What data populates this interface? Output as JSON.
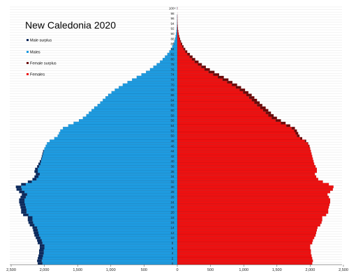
{
  "chart_data": {
    "type": "bar",
    "orientation": "horizontal",
    "title": "New Caledonia 2020",
    "legend": {
      "placement": "top-left",
      "entries": [
        {
          "key": "male_surplus",
          "label": "Male surplus",
          "color": "#0d2a5c"
        },
        {
          "key": "males",
          "label": "Males",
          "color": "#1e9be0"
        },
        {
          "key": "female_surplus",
          "label": "Female surplus",
          "color": "#6b0a0a"
        },
        {
          "key": "females",
          "label": "Females",
          "color": "#ee1010"
        }
      ]
    },
    "grid": true,
    "xlim": [
      -2500,
      2500
    ],
    "x_ticks": [
      -2500,
      -2000,
      -1500,
      -1000,
      -500,
      0,
      500,
      1000,
      1500,
      2000,
      2500
    ],
    "x_tick_labels": [
      "2,500",
      "2,000",
      "1,500",
      "1,000",
      "500",
      "0",
      "500",
      "1,000",
      "1,500",
      "2,000",
      "2,500"
    ],
    "age_labels": [
      "0",
      "2",
      "4",
      "6",
      "8",
      "10",
      "12",
      "14",
      "16",
      "18",
      "20",
      "22",
      "24",
      "26",
      "28",
      "30",
      "32",
      "34",
      "36",
      "38",
      "40",
      "42",
      "44",
      "46",
      "48",
      "50",
      "52",
      "54",
      "56",
      "58",
      "60",
      "62",
      "64",
      "66",
      "68",
      "70",
      "72",
      "74",
      "76",
      "78",
      "80",
      "82",
      "84",
      "86",
      "88",
      "90",
      "92",
      "94",
      "96",
      "98",
      "100+"
    ],
    "categories": [
      "0",
      "1",
      "2",
      "3",
      "4",
      "5",
      "6",
      "7",
      "8",
      "9",
      "10",
      "11",
      "12",
      "13",
      "14",
      "15",
      "16",
      "17",
      "18",
      "19",
      "20",
      "21",
      "22",
      "23",
      "24",
      "25",
      "26",
      "27",
      "28",
      "29",
      "30",
      "31",
      "32",
      "33",
      "34",
      "35",
      "36",
      "37",
      "38",
      "39",
      "40",
      "41",
      "42",
      "43",
      "44",
      "45",
      "46",
      "47",
      "48",
      "49",
      "50",
      "51",
      "52",
      "53",
      "54",
      "55",
      "56",
      "57",
      "58",
      "59",
      "60",
      "61",
      "62",
      "63",
      "64",
      "65",
      "66",
      "67",
      "68",
      "69",
      "70",
      "71",
      "72",
      "73",
      "74",
      "75",
      "76",
      "77",
      "78",
      "79",
      "80",
      "81",
      "82",
      "83",
      "84",
      "85",
      "86",
      "87",
      "88",
      "89",
      "90",
      "91",
      "92",
      "93",
      "94",
      "95",
      "96",
      "97",
      "98",
      "99",
      "100+"
    ],
    "series": [
      {
        "name": "Males",
        "values": [
          2100,
          2110,
          2100,
          2090,
          2080,
          2080,
          2070,
          2070,
          2100,
          2110,
          2130,
          2150,
          2160,
          2170,
          2180,
          2220,
          2240,
          2250,
          2250,
          2320,
          2350,
          2350,
          2360,
          2370,
          2380,
          2380,
          2360,
          2340,
          2380,
          2420,
          2430,
          2350,
          2250,
          2180,
          2150,
          2130,
          2150,
          2140,
          2110,
          2090,
          2070,
          2050,
          2040,
          2030,
          2020,
          2000,
          1980,
          1960,
          1920,
          1850,
          1800,
          1780,
          1760,
          1720,
          1640,
          1560,
          1480,
          1420,
          1370,
          1330,
          1290,
          1250,
          1200,
          1160,
          1120,
          1080,
          1040,
          990,
          940,
          880,
          820,
          750,
          680,
          610,
          540,
          470,
          410,
          360,
          310,
          260,
          220,
          185,
          150,
          120,
          95,
          75,
          58,
          44,
          33,
          24,
          17,
          12,
          8,
          5,
          3,
          2,
          1,
          1,
          0,
          0,
          1
        ]
      },
      {
        "name": "Females",
        "values": [
          2030,
          2040,
          2030,
          2020,
          2010,
          2010,
          2000,
          2000,
          2030,
          2040,
          2060,
          2080,
          2090,
          2100,
          2110,
          2150,
          2170,
          2180,
          2180,
          2240,
          2270,
          2270,
          2280,
          2290,
          2300,
          2300,
          2280,
          2260,
          2300,
          2340,
          2350,
          2280,
          2190,
          2120,
          2090,
          2070,
          2100,
          2100,
          2080,
          2060,
          2050,
          2040,
          2030,
          2020,
          2010,
          2000,
          1990,
          1970,
          1940,
          1880,
          1840,
          1820,
          1800,
          1770,
          1700,
          1630,
          1560,
          1500,
          1450,
          1410,
          1370,
          1330,
          1280,
          1240,
          1200,
          1160,
          1120,
          1070,
          1020,
          960,
          900,
          830,
          770,
          700,
          630,
          560,
          490,
          430,
          370,
          320,
          270,
          230,
          190,
          150,
          120,
          95,
          74,
          56,
          42,
          31,
          22,
          15,
          10,
          7,
          5,
          3,
          2,
          1,
          1,
          0,
          1
        ]
      }
    ]
  }
}
